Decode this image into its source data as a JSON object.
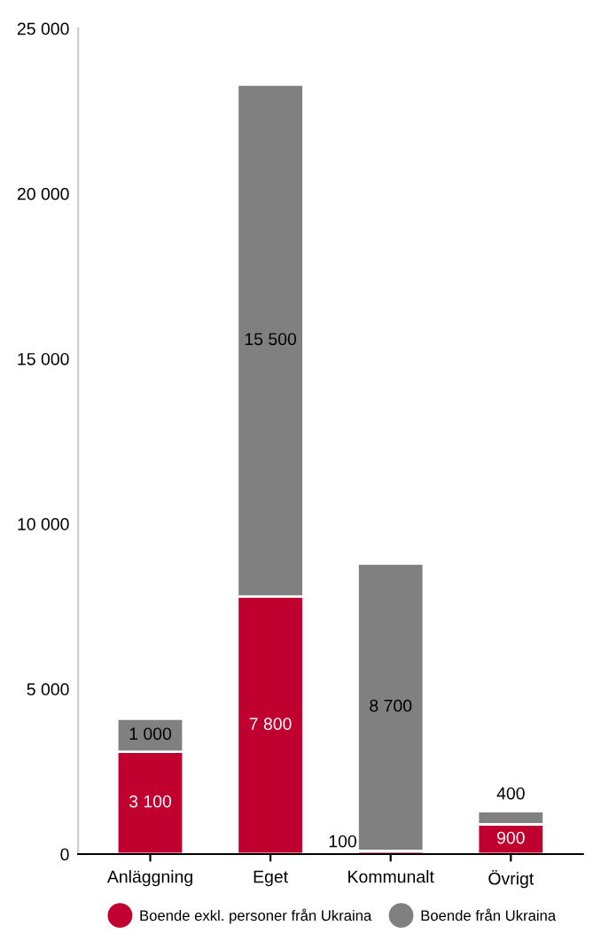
{
  "chart_data": {
    "type": "bar",
    "stacked": true,
    "categories": [
      "Anläggning",
      "Eget",
      "Kommunalt",
      "Övrigt"
    ],
    "series": [
      {
        "name": "Boende exkl. personer från Ukraina",
        "color": "#c0002f",
        "values": [
          3100,
          7800,
          100,
          900
        ],
        "value_labels": [
          "3 100",
          "7 800",
          "100",
          "900"
        ]
      },
      {
        "name": "Boende från Ukraina",
        "color": "#808080",
        "values": [
          1000,
          15500,
          8700,
          400
        ],
        "value_labels": [
          "1 000",
          "15 500",
          "8 700",
          "400"
        ]
      }
    ],
    "ylim": [
      0,
      25000
    ],
    "yticks": [
      {
        "value": 0,
        "label": "0"
      },
      {
        "value": 5000,
        "label": "5 000"
      },
      {
        "value": 10000,
        "label": "10 000"
      },
      {
        "value": 15000,
        "label": "15 000"
      },
      {
        "value": 20000,
        "label": "20 000"
      },
      {
        "value": 25000,
        "label": "25 000"
      }
    ],
    "grid": false,
    "legend": "bottom"
  }
}
